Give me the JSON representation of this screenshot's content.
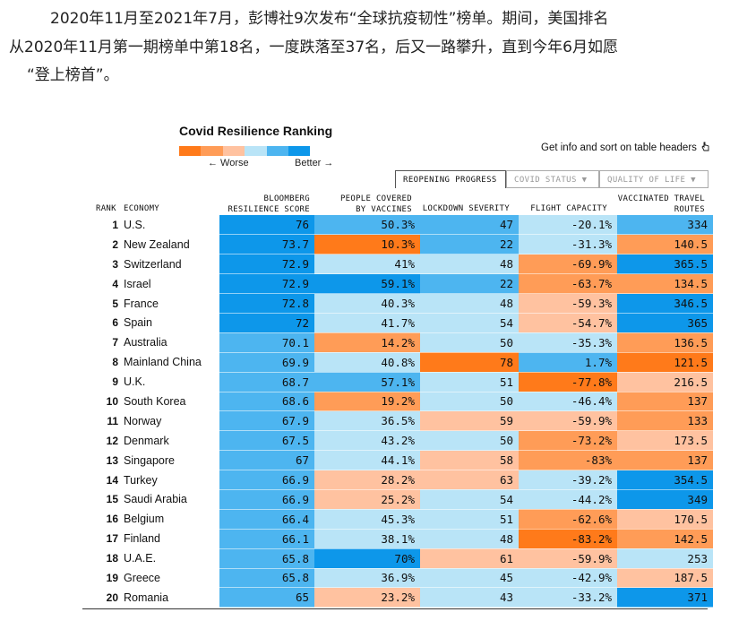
{
  "intro": {
    "line1": "2020年11月至2021年7月，彭博社9次发布“全球抗疫韧性”榜单。期间，美国排名",
    "line2": "从2020年11月第一期榜单中第18名，一度跌落至37名，后又一路攀升，直到今年6月如愿",
    "line3": "“登上榜首”。"
  },
  "chart": {
    "title": "Covid Resilience Ranking",
    "worse_label": "← Worse",
    "better_label": "Better →",
    "info_text": "Get info and sort on table headers",
    "info_icon": "pointer-hand-icon",
    "legend_colors": [
      "#ff7a1a",
      "#ff9c57",
      "#ffc2a0",
      "#b9e4f7",
      "#4db5f0",
      "#0d97ea"
    ]
  },
  "tabs": [
    {
      "label": "REOPENING PROGRESS"
    },
    {
      "label": "COVID STATUS ▼"
    },
    {
      "label": "QUALITY OF LIFE ▼"
    }
  ],
  "headers": {
    "rank": "RANK",
    "economy": "ECONOMY",
    "score_l1": "BLOOMBERG",
    "score_l2": "RESILIENCE SCORE",
    "vacc_l1": "PEOPLE COVERED",
    "vacc_l2": "BY VACCINES",
    "lockdown": "LOCKDOWN SEVERITY",
    "flight": "FLIGHT CAPACITY",
    "routes_l1": "VACCINATED TRAVEL",
    "routes_l2": "ROUTES"
  },
  "colors": {
    "dark_blue": "#0d97ea",
    "mid_blue": "#4db5f0",
    "light_blue": "#b9e4f7",
    "peach": "#ffc2a0",
    "light_orange": "#ff9c57",
    "orange": "#ff7a1a"
  },
  "rows": [
    {
      "rank": "1",
      "economy": "U.S.",
      "score": "76",
      "vacc": "50.3%",
      "lockdown": "47",
      "flight": "-20.1%",
      "routes": "334",
      "colors": [
        "#0d97ea",
        "#4db5f0",
        "#4db5f0",
        "#b9e4f7",
        "#4db5f0"
      ]
    },
    {
      "rank": "2",
      "economy": "New Zealand",
      "score": "73.7",
      "vacc": "10.3%",
      "lockdown": "22",
      "flight": "-31.3%",
      "routes": "140.5",
      "colors": [
        "#0d97ea",
        "#ff7a1a",
        "#4db5f0",
        "#b9e4f7",
        "#ff9c57"
      ]
    },
    {
      "rank": "3",
      "economy": "Switzerland",
      "score": "72.9",
      "vacc": "41%",
      "lockdown": "48",
      "flight": "-69.9%",
      "routes": "365.5",
      "colors": [
        "#0d97ea",
        "#b9e4f7",
        "#b9e4f7",
        "#ff9c57",
        "#0d97ea"
      ]
    },
    {
      "rank": "4",
      "economy": "Israel",
      "score": "72.9",
      "vacc": "59.1%",
      "lockdown": "22",
      "flight": "-63.7%",
      "routes": "134.5",
      "colors": [
        "#0d97ea",
        "#0d97ea",
        "#4db5f0",
        "#ff9c57",
        "#ff9c57"
      ]
    },
    {
      "rank": "5",
      "economy": "France",
      "score": "72.8",
      "vacc": "40.3%",
      "lockdown": "48",
      "flight": "-59.3%",
      "routes": "346.5",
      "colors": [
        "#0d97ea",
        "#b9e4f7",
        "#b9e4f7",
        "#ffc2a0",
        "#0d97ea"
      ]
    },
    {
      "rank": "6",
      "economy": "Spain",
      "score": "72",
      "vacc": "41.7%",
      "lockdown": "54",
      "flight": "-54.7%",
      "routes": "365",
      "colors": [
        "#0d97ea",
        "#b9e4f7",
        "#b9e4f7",
        "#ffc2a0",
        "#0d97ea"
      ]
    },
    {
      "rank": "7",
      "economy": "Australia",
      "score": "70.1",
      "vacc": "14.2%",
      "lockdown": "50",
      "flight": "-35.3%",
      "routes": "136.5",
      "colors": [
        "#4db5f0",
        "#ff9c57",
        "#b9e4f7",
        "#b9e4f7",
        "#ff9c57"
      ]
    },
    {
      "rank": "8",
      "economy": "Mainland China",
      "score": "69.9",
      "vacc": "40.8%",
      "lockdown": "78",
      "flight": "1.7%",
      "routes": "121.5",
      "colors": [
        "#4db5f0",
        "#b9e4f7",
        "#ff7a1a",
        "#4db5f0",
        "#ff7a1a"
      ]
    },
    {
      "rank": "9",
      "economy": "U.K.",
      "score": "68.7",
      "vacc": "57.1%",
      "lockdown": "51",
      "flight": "-77.8%",
      "routes": "216.5",
      "colors": [
        "#4db5f0",
        "#4db5f0",
        "#b9e4f7",
        "#ff7a1a",
        "#ffc2a0"
      ]
    },
    {
      "rank": "10",
      "economy": "South Korea",
      "score": "68.6",
      "vacc": "19.2%",
      "lockdown": "50",
      "flight": "-46.4%",
      "routes": "137",
      "colors": [
        "#4db5f0",
        "#ff9c57",
        "#b9e4f7",
        "#b9e4f7",
        "#ff9c57"
      ]
    },
    {
      "rank": "11",
      "economy": "Norway",
      "score": "67.9",
      "vacc": "36.5%",
      "lockdown": "59",
      "flight": "-59.9%",
      "routes": "133",
      "colors": [
        "#4db5f0",
        "#b9e4f7",
        "#ffc2a0",
        "#ffc2a0",
        "#ff9c57"
      ]
    },
    {
      "rank": "12",
      "economy": "Denmark",
      "score": "67.5",
      "vacc": "43.2%",
      "lockdown": "50",
      "flight": "-73.2%",
      "routes": "173.5",
      "colors": [
        "#4db5f0",
        "#b9e4f7",
        "#b9e4f7",
        "#ff9c57",
        "#ffc2a0"
      ]
    },
    {
      "rank": "13",
      "economy": "Singapore",
      "score": "67",
      "vacc": "44.1%",
      "lockdown": "58",
      "flight": "-83%",
      "routes": "137",
      "colors": [
        "#4db5f0",
        "#b9e4f7",
        "#ffc2a0",
        "#ff9c57",
        "#ff9c57"
      ]
    },
    {
      "rank": "14",
      "economy": "Turkey",
      "score": "66.9",
      "vacc": "28.2%",
      "lockdown": "63",
      "flight": "-39.2%",
      "routes": "354.5",
      "colors": [
        "#4db5f0",
        "#ffc2a0",
        "#ffc2a0",
        "#b9e4f7",
        "#0d97ea"
      ]
    },
    {
      "rank": "15",
      "economy": "Saudi Arabia",
      "score": "66.9",
      "vacc": "25.2%",
      "lockdown": "54",
      "flight": "-44.2%",
      "routes": "349",
      "colors": [
        "#4db5f0",
        "#ffc2a0",
        "#b9e4f7",
        "#b9e4f7",
        "#0d97ea"
      ]
    },
    {
      "rank": "16",
      "economy": "Belgium",
      "score": "66.4",
      "vacc": "45.3%",
      "lockdown": "51",
      "flight": "-62.6%",
      "routes": "170.5",
      "colors": [
        "#4db5f0",
        "#b9e4f7",
        "#b9e4f7",
        "#ff9c57",
        "#ffc2a0"
      ]
    },
    {
      "rank": "17",
      "economy": "Finland",
      "score": "66.1",
      "vacc": "38.1%",
      "lockdown": "48",
      "flight": "-83.2%",
      "routes": "142.5",
      "colors": [
        "#4db5f0",
        "#b9e4f7",
        "#b9e4f7",
        "#ff7a1a",
        "#ff9c57"
      ]
    },
    {
      "rank": "18",
      "economy": "U.A.E.",
      "score": "65.8",
      "vacc": "70%",
      "lockdown": "61",
      "flight": "-59.9%",
      "routes": "253",
      "colors": [
        "#4db5f0",
        "#0d97ea",
        "#ffc2a0",
        "#ffc2a0",
        "#b9e4f7"
      ]
    },
    {
      "rank": "19",
      "economy": "Greece",
      "score": "65.8",
      "vacc": "36.9%",
      "lockdown": "45",
      "flight": "-42.9%",
      "routes": "187.5",
      "colors": [
        "#4db5f0",
        "#b9e4f7",
        "#b9e4f7",
        "#b9e4f7",
        "#ffc2a0"
      ]
    },
    {
      "rank": "20",
      "economy": "Romania",
      "score": "65",
      "vacc": "23.2%",
      "lockdown": "43",
      "flight": "-33.2%",
      "routes": "371",
      "colors": [
        "#4db5f0",
        "#ffc2a0",
        "#b9e4f7",
        "#b9e4f7",
        "#0d97ea"
      ]
    }
  ]
}
